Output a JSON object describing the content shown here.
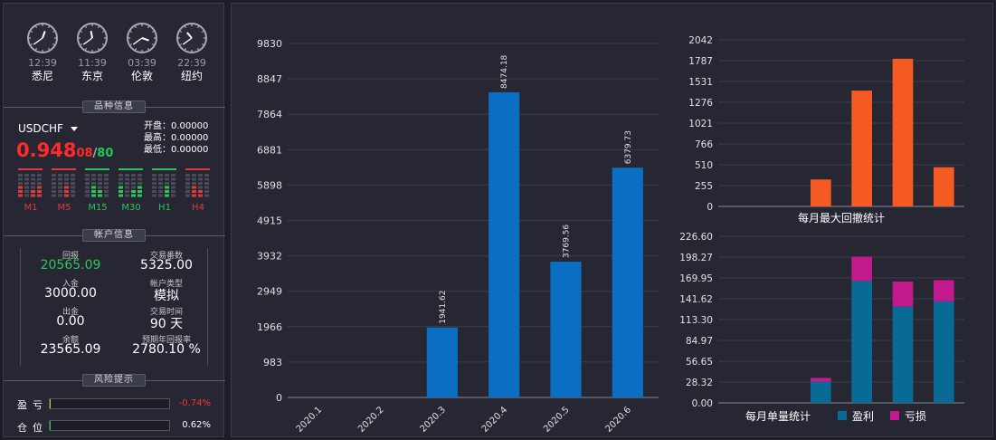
{
  "clocks": [
    {
      "time": "12:39",
      "city": "悉尼",
      "hour": 12,
      "minute": 39
    },
    {
      "time": "11:39",
      "city": "东京",
      "hour": 11,
      "minute": 39
    },
    {
      "time": "03:39",
      "city": "伦敦",
      "hour": 3,
      "minute": 39
    },
    {
      "time": "22:39",
      "city": "纽约",
      "hour": 22,
      "minute": 39
    }
  ],
  "symbol_section": {
    "title": "品种信息",
    "symbol": "USDCHF",
    "price_big": "0.948",
    "price_small": "08",
    "price_slash": "/",
    "spread": "80",
    "open": "开盘：0.00000",
    "high": "最高：0.00000",
    "low": "最低：0.00000",
    "timeframes": [
      {
        "label": "M1",
        "color": "#e03a3a"
      },
      {
        "label": "M5",
        "color": "#e03a3a"
      },
      {
        "label": "M15",
        "color": "#2ec45a"
      },
      {
        "label": "M30",
        "color": "#2ec45a"
      },
      {
        "label": "H1",
        "color": "#2ec45a"
      },
      {
        "label": "H4",
        "color": "#e03a3a"
      }
    ]
  },
  "account": {
    "title": "帐户信息",
    "items": [
      {
        "label": "回报",
        "value": "20565.09",
        "color": "#2ec45a"
      },
      {
        "label": "交易番数",
        "value": "5325.00",
        "color": "#ffffff"
      },
      {
        "label": "入金",
        "value": "3000.00",
        "color": "#ffffff"
      },
      {
        "label": "帐户类型",
        "value": "模拟",
        "color": "#ffffff"
      },
      {
        "label": "出金",
        "value": "0.00",
        "color": "#ffffff"
      },
      {
        "label": "交易时间",
        "value": "90 天",
        "color": "#ffffff"
      },
      {
        "label": "余额",
        "value": "23565.09",
        "color": "#ffffff"
      },
      {
        "label": "预期年回报率",
        "value": "2780.10 %",
        "color": "#ffffff"
      }
    ]
  },
  "risk": {
    "title": "风险提示",
    "pl_label": "盈亏",
    "pl_value": "-0.74%",
    "pl_fill": 0.01,
    "pos_label": "仓位",
    "pos_value": "0.62%",
    "pos_fill": 0.0062
  },
  "chart_data": [
    {
      "type": "bar",
      "categories": [
        "2020.1",
        "2020.2",
        "2020.3",
        "2020.4",
        "2020.5",
        "2020.6"
      ],
      "values": [
        0,
        0,
        1941.62,
        8474.18,
        3769.56,
        6379.73
      ],
      "data_labels": [
        "",
        "",
        "1941.62",
        "8474.18",
        "3769.56",
        "6379.73"
      ],
      "yticks": [
        "0",
        "983",
        "1966",
        "2949",
        "3932",
        "4915",
        "5898",
        "6881",
        "7864",
        "8847",
        "9830"
      ],
      "ylim": [
        0,
        9830
      ],
      "color": "#0a6fc2"
    },
    {
      "type": "bar",
      "title": "每月最大回撤统计",
      "categories": [
        "2020.1",
        "2020.2",
        "2020.3",
        "2020.4",
        "2020.5",
        "2020.6"
      ],
      "values": [
        0,
        0,
        330,
        1420,
        1810,
        480
      ],
      "yticks": [
        "0",
        "255",
        "510",
        "766",
        "1021",
        "1276",
        "1531",
        "1787",
        "2042"
      ],
      "ylim": [
        0,
        2042
      ],
      "color": "#f55a22"
    },
    {
      "type": "bar",
      "title": "每月单量统计",
      "categories": [
        "2020.1",
        "2020.2",
        "2020.3",
        "2020.4",
        "2020.5",
        "2020.6"
      ],
      "series": [
        {
          "name": "盈利",
          "values": [
            0,
            0,
            29,
            166,
            131,
            138
          ],
          "color": "#0a6a96"
        },
        {
          "name": "亏损",
          "values": [
            0,
            0,
            5,
            33,
            34,
            29
          ],
          "color": "#c21a8c"
        }
      ],
      "yticks": [
        "0.00",
        "28.32",
        "56.65",
        "84.97",
        "113.30",
        "141.62",
        "169.95",
        "198.27",
        "226.60"
      ],
      "ylim": [
        0,
        226.6
      ]
    }
  ]
}
